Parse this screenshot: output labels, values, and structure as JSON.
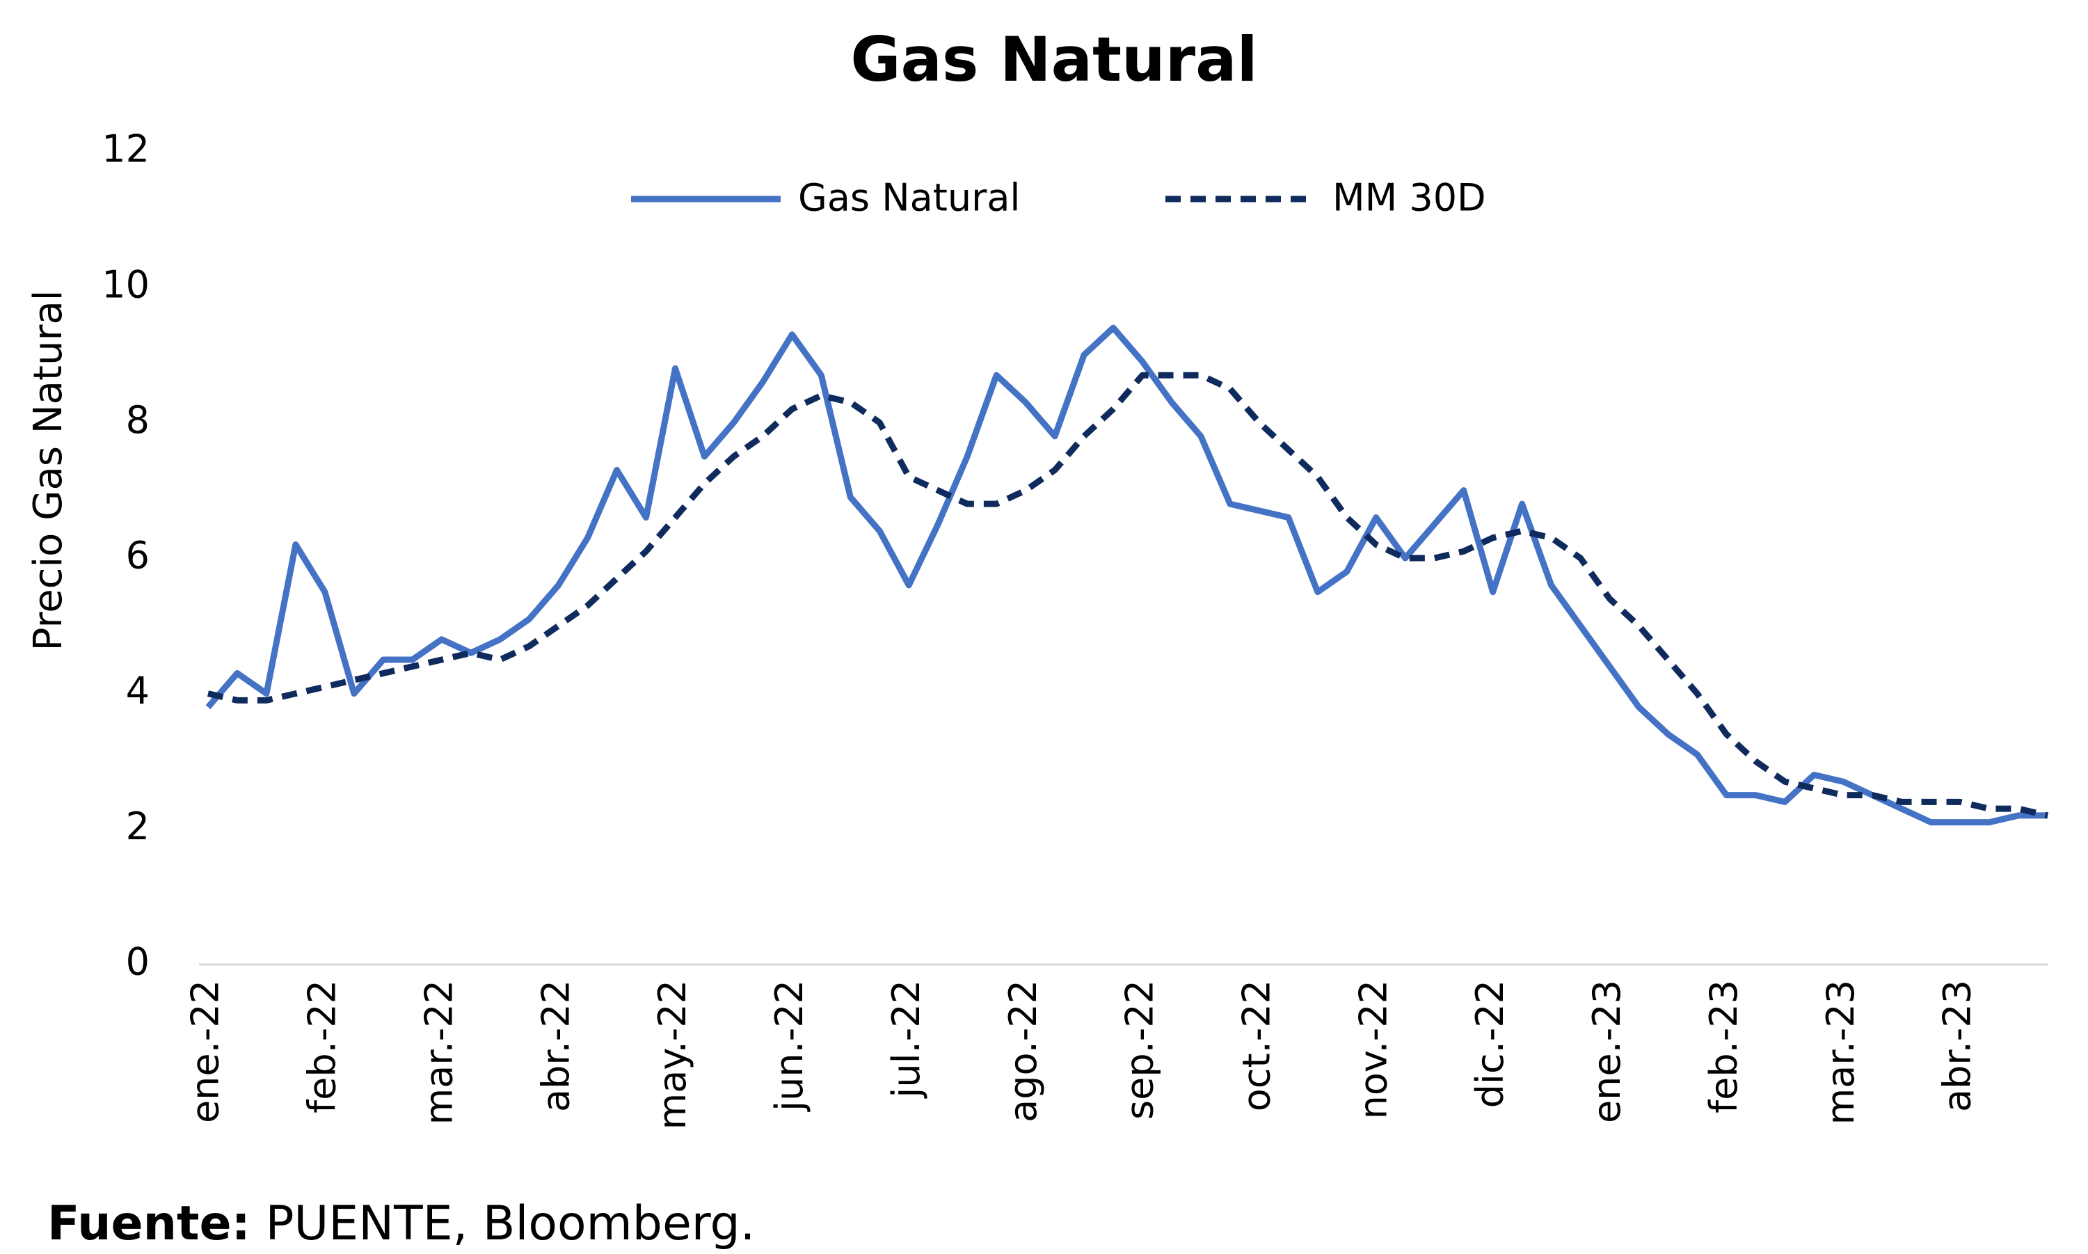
{
  "chart_data": {
    "type": "line",
    "title": "Gas Natural",
    "y_label": "Precio Gas Natural",
    "categories": [
      "ene.-22",
      null,
      null,
      null,
      "feb.-22",
      null,
      null,
      null,
      "mar.-22",
      null,
      null,
      null,
      "abr.-22",
      null,
      null,
      null,
      "may.-22",
      null,
      null,
      null,
      "jun.-22",
      null,
      null,
      null,
      "jul.-22",
      null,
      null,
      null,
      "ago.-22",
      null,
      null,
      null,
      "sep.-22",
      null,
      null,
      null,
      "oct.-22",
      null,
      null,
      null,
      "nov.-22",
      null,
      null,
      null,
      "dic.-22",
      null,
      null,
      null,
      "ene.-23",
      null,
      null,
      null,
      "feb.-23",
      null,
      null,
      null,
      "mar.-23",
      null,
      null,
      null,
      "abr.-23",
      null,
      null,
      null
    ],
    "series": [
      {
        "name": "Gas Natural",
        "color": "#4472c4",
        "dash": false,
        "values": [
          3.8,
          4.3,
          4.0,
          6.2,
          5.5,
          4.0,
          4.5,
          4.5,
          4.8,
          4.6,
          4.8,
          5.1,
          5.6,
          6.3,
          7.3,
          6.6,
          8.8,
          7.5,
          8.0,
          8.6,
          9.3,
          8.7,
          6.9,
          6.4,
          5.6,
          6.5,
          7.5,
          8.7,
          8.3,
          7.8,
          9.0,
          9.4,
          8.9,
          8.3,
          7.8,
          6.8,
          6.7,
          6.6,
          5.5,
          5.8,
          6.6,
          6.0,
          6.5,
          7.0,
          5.5,
          6.8,
          5.6,
          5.0,
          4.4,
          3.8,
          3.4,
          3.1,
          2.5,
          2.5,
          2.4,
          2.8,
          2.7,
          2.5,
          2.3,
          2.1,
          2.1,
          2.1,
          2.2,
          2.2
        ]
      },
      {
        "name": "MM 30D",
        "color": "#0f2a5c",
        "dash": true,
        "values": [
          4.0,
          3.9,
          3.9,
          4.0,
          4.1,
          4.2,
          4.3,
          4.4,
          4.5,
          4.6,
          4.5,
          4.7,
          5.0,
          5.3,
          5.7,
          6.1,
          6.6,
          7.1,
          7.5,
          7.8,
          8.2,
          8.4,
          8.3,
          8.0,
          7.2,
          7.0,
          6.8,
          6.8,
          7.0,
          7.3,
          7.8,
          8.2,
          8.7,
          8.7,
          8.7,
          8.5,
          8.0,
          7.6,
          7.2,
          6.6,
          6.2,
          6.0,
          6.0,
          6.1,
          6.3,
          6.4,
          6.3,
          6.0,
          5.4,
          5.0,
          4.5,
          4.0,
          3.4,
          3.0,
          2.7,
          2.6,
          2.5,
          2.5,
          2.4,
          2.4,
          2.4,
          2.3,
          2.3,
          2.2
        ]
      }
    ],
    "ylim": [
      0,
      12
    ],
    "yticks": [
      0,
      2,
      4,
      6,
      8,
      10,
      12
    ],
    "grid": false,
    "legend": "top"
  },
  "source": {
    "label": "Fuente:",
    "text": "PUENTE, Bloomberg."
  }
}
